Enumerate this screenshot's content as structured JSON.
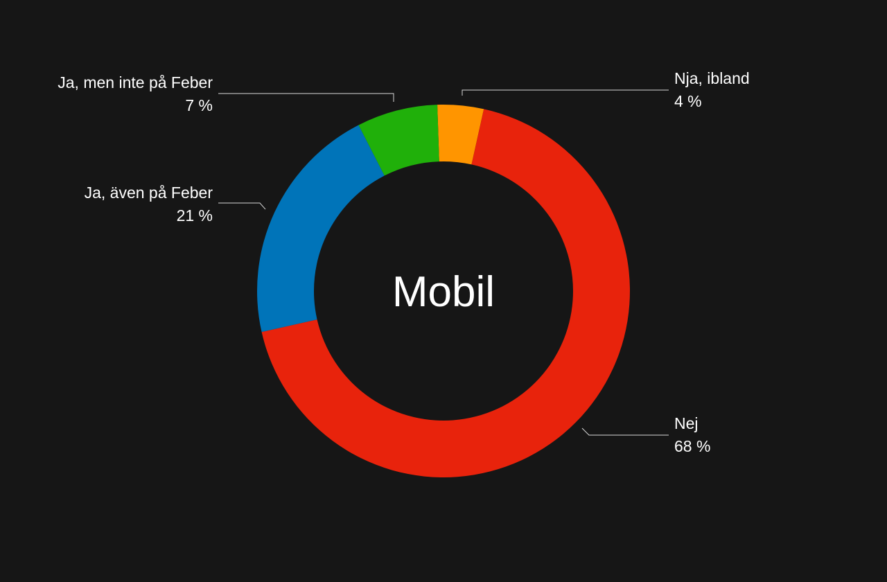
{
  "chart_data": {
    "type": "donut",
    "title": "Mobil",
    "categories": [
      "Nja, ibland",
      "Nej",
      "Ja, även på Feber",
      "Ja, men inte på Feber"
    ],
    "values": [
      4,
      68,
      21,
      7
    ],
    "value_labels": [
      "4 %",
      "68 %",
      "21 %",
      "7 %"
    ],
    "colors": [
      "#ff9500",
      "#e8230c",
      "#0074b9",
      "#20b00a"
    ]
  }
}
